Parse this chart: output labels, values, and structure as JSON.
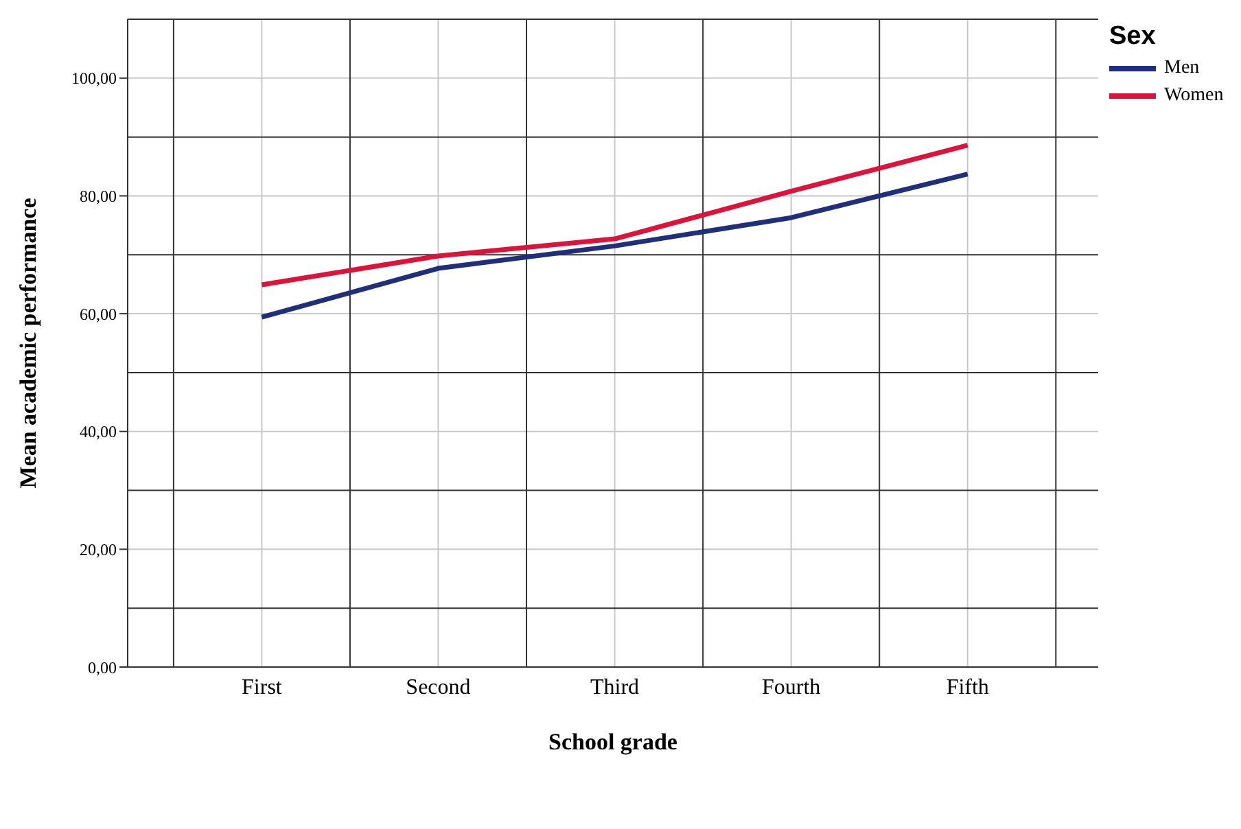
{
  "chart_data": {
    "type": "line",
    "xlabel": "School grade",
    "ylabel": "Mean academic performance",
    "legend_title": "Sex",
    "legend": "top right",
    "grid": true,
    "marker": "none",
    "line_style": "solid",
    "categories": [
      "First",
      "Second",
      "Third",
      "Fourth",
      "Fifth"
    ],
    "ylim": [
      0,
      110
    ],
    "yticks": [
      {
        "value": 0,
        "label": "0,00"
      },
      {
        "value": 10,
        "label": null
      },
      {
        "value": 20,
        "label": "20,00"
      },
      {
        "value": 30,
        "label": null
      },
      {
        "value": 40,
        "label": "40,00"
      },
      {
        "value": 50,
        "label": null
      },
      {
        "value": 60,
        "label": "60,00"
      },
      {
        "value": 70,
        "label": null
      },
      {
        "value": 80,
        "label": "80,00"
      },
      {
        "value": 90,
        "label": null
      },
      {
        "value": 100,
        "label": "100,00"
      },
      {
        "value": 110,
        "label": null
      }
    ],
    "series": [
      {
        "name": "Men",
        "color": "#1f2f7a",
        "values": [
          59.4,
          67.7,
          71.5,
          76.3,
          83.7
        ]
      },
      {
        "name": "Women",
        "color": "#dc143c",
        "values": [
          64.9,
          69.8,
          72.7,
          80.8,
          88.6
        ]
      }
    ]
  }
}
